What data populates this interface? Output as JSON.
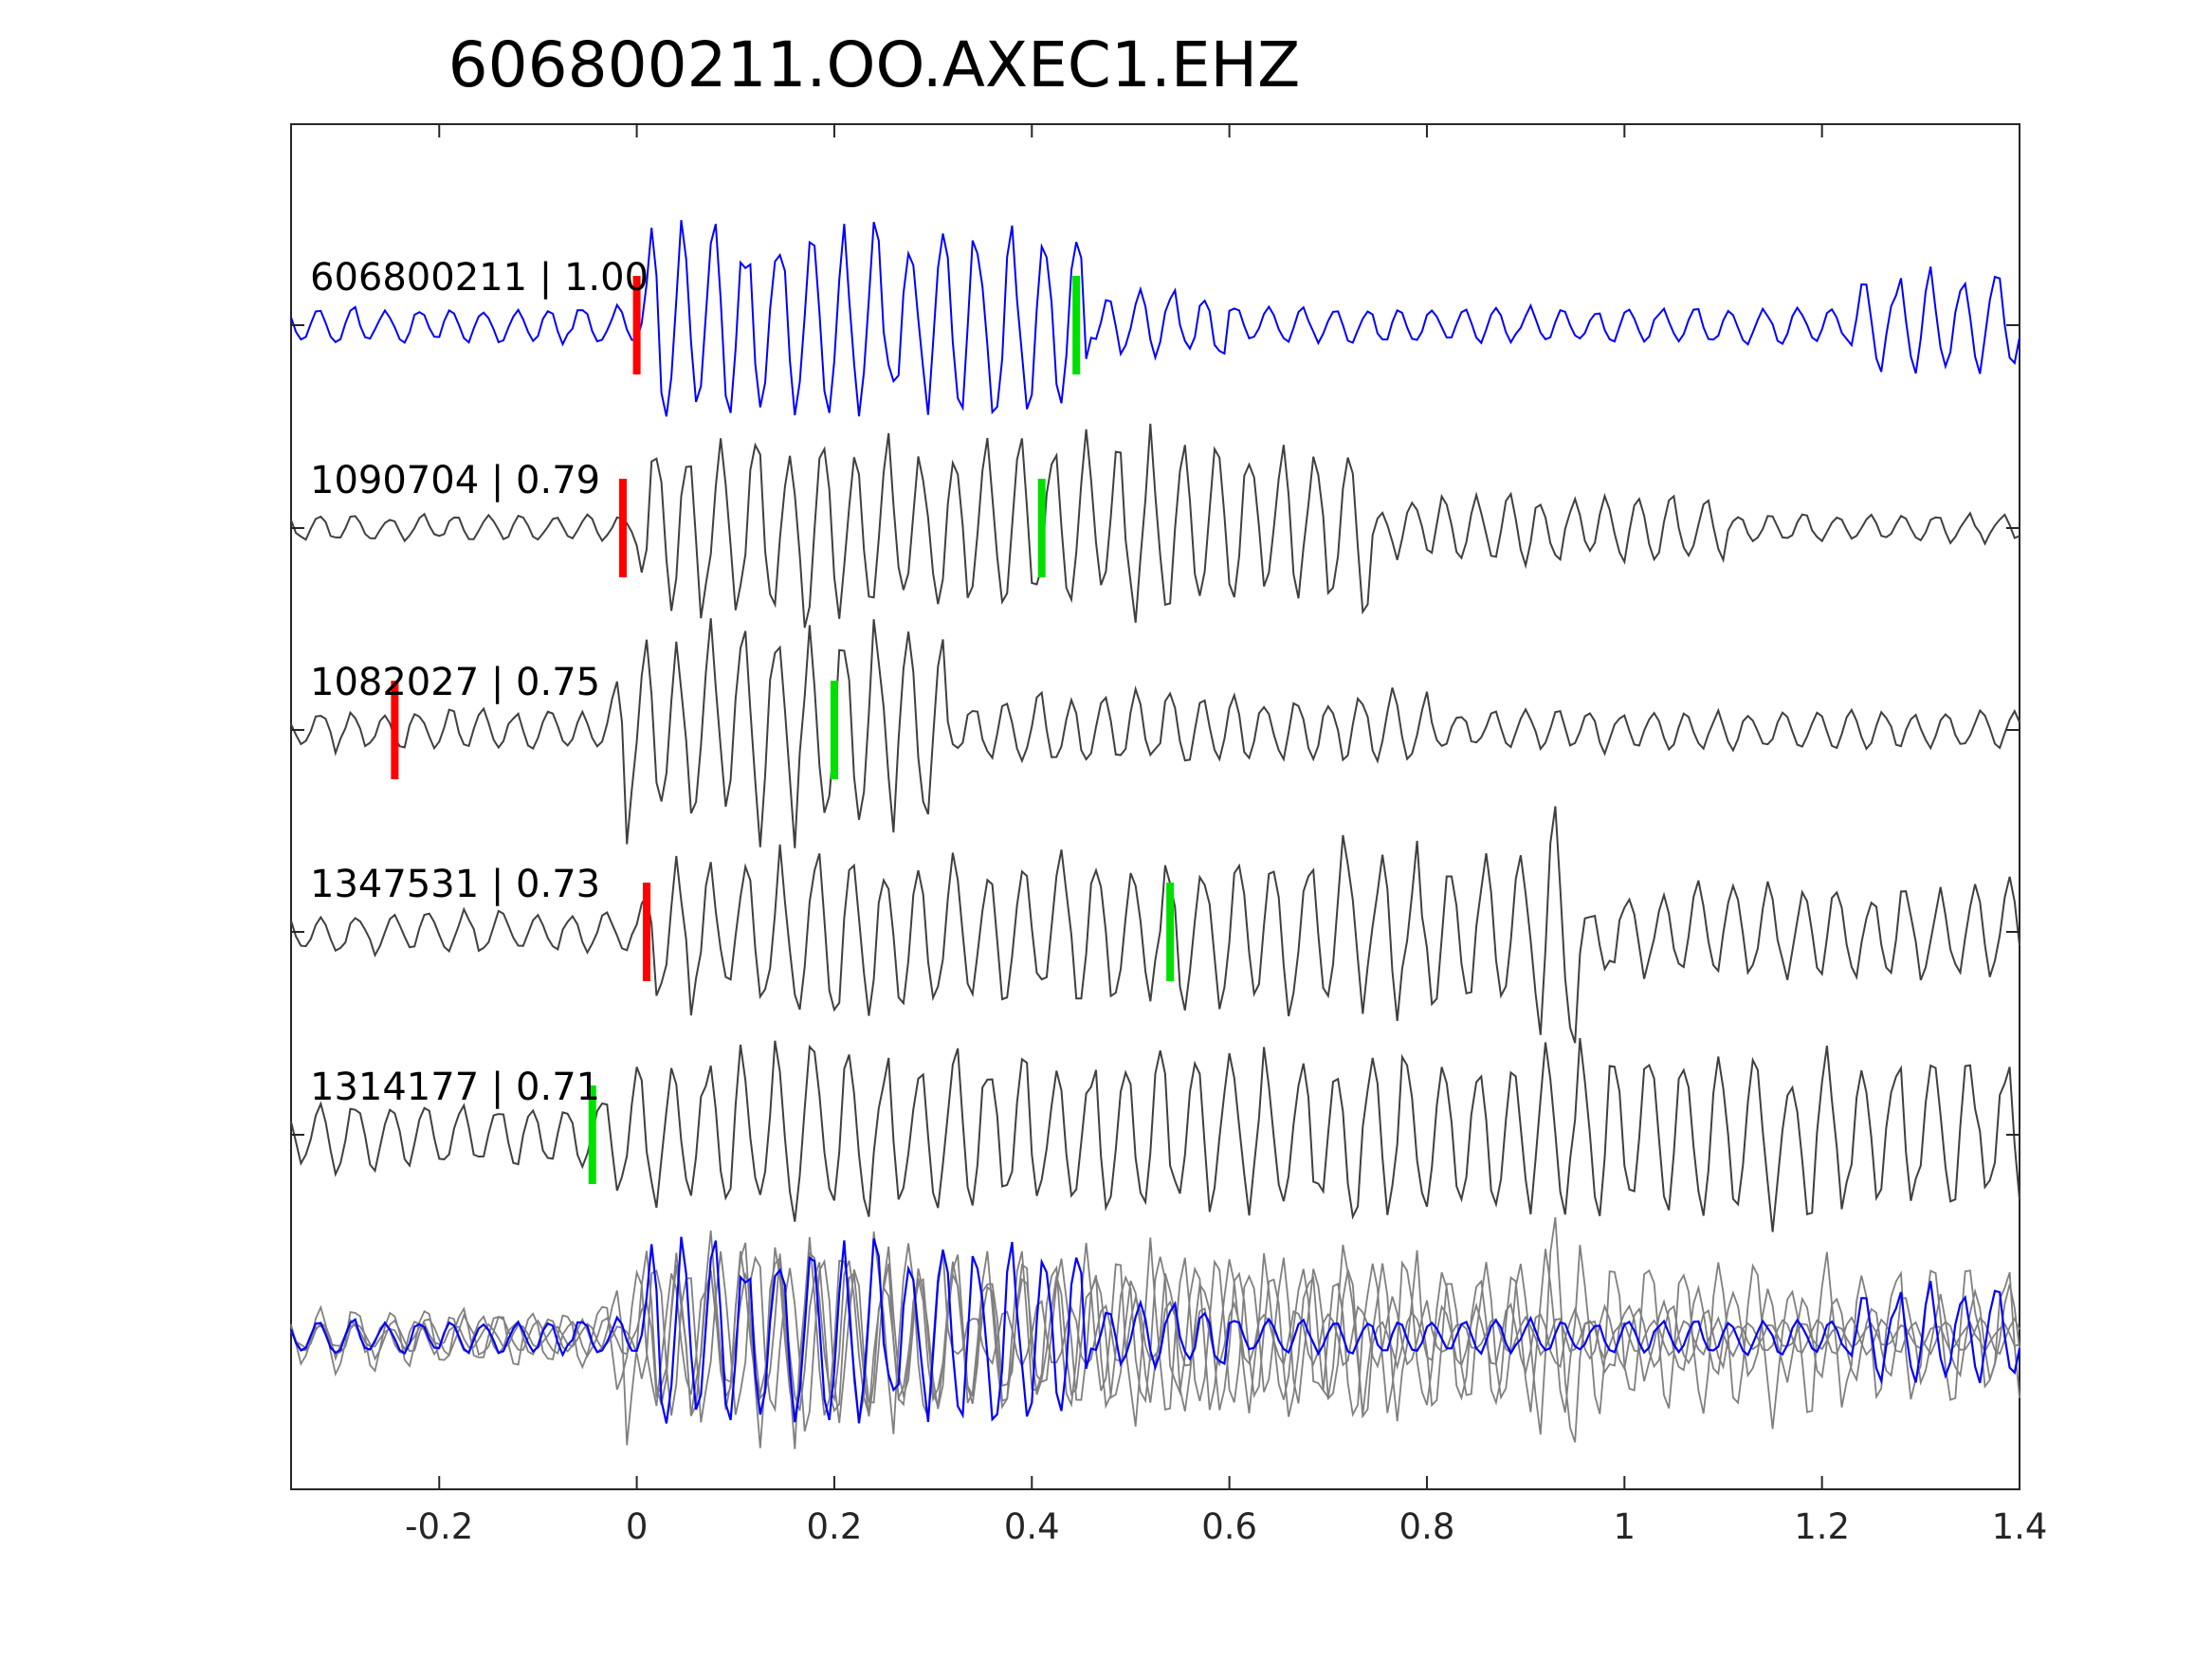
{
  "chart_data": {
    "type": "line",
    "title": "606800211.OO.AXEC1.EHZ",
    "xlabel": "",
    "ylabel": "",
    "xlim": [
      -0.35,
      1.4
    ],
    "x_ticks": [
      -0.2,
      0,
      0.2,
      0.4,
      0.6,
      0.8,
      1,
      1.2,
      1.4
    ],
    "x_tick_labels": [
      "-0.2",
      "0",
      "0.2",
      "0.4",
      "0.6",
      "0.8",
      "1",
      "1.2",
      "1.4"
    ],
    "grid": false,
    "colors": {
      "template": "#0000ff",
      "neighbor": "#404040",
      "stack_neighbor": "#808080",
      "pick_p": "#ff0000",
      "pick_s": "#00e000",
      "axes": "#262626"
    },
    "series": [
      {
        "name": "606800211 | 1.00",
        "id": "606800211",
        "correlation": 1.0,
        "color": "#0000ff",
        "p_pick": 0.0,
        "s_pick": 0.445,
        "onset": 0.0,
        "noise": 0.16,
        "amp": 1.0,
        "freq": 30,
        "seed": 11,
        "bursts": [
          {
            "t0": 0.0,
            "t1": 0.46,
            "amp": 1.0
          },
          {
            "t0": 0.46,
            "t1": 0.6,
            "amp": 0.35
          },
          {
            "t0": 1.22,
            "t1": 1.4,
            "amp": 0.55
          }
        ]
      },
      {
        "name": "1090704 | 0.79",
        "id": "1090704",
        "correlation": 0.79,
        "color": "#404040",
        "p_pick": -0.014,
        "s_pick": 0.41,
        "onset": -0.005,
        "noise": 0.12,
        "amp": 0.95,
        "freq": 30,
        "seed": 23,
        "bursts": [
          {
            "t0": -0.005,
            "t1": 0.75,
            "amp": 0.9
          },
          {
            "t0": 0.75,
            "t1": 1.1,
            "amp": 0.35
          }
        ]
      },
      {
        "name": "1082027 | 0.75",
        "id": "1082027",
        "correlation": 0.75,
        "color": "#404040",
        "p_pick": -0.245,
        "s_pick": 0.2,
        "onset": -0.03,
        "noise": 0.18,
        "amp": 0.95,
        "freq": 30,
        "seed": 37,
        "bursts": [
          {
            "t0": -0.03,
            "t1": 0.32,
            "amp": 1.0
          },
          {
            "t0": 0.32,
            "t1": 0.8,
            "amp": 0.35
          }
        ]
      },
      {
        "name": "1347531 | 0.73",
        "id": "1347531",
        "correlation": 0.73,
        "color": "#404040",
        "p_pick": 0.01,
        "s_pick": 0.54,
        "onset": 0.0,
        "noise": 0.18,
        "amp": 0.8,
        "freq": 28,
        "seed": 53,
        "bursts": [
          {
            "t0": 0.0,
            "t1": 0.9,
            "amp": 0.8
          },
          {
            "t0": 0.9,
            "t1": 0.96,
            "amp": 1.3
          },
          {
            "t0": 0.96,
            "t1": 1.4,
            "amp": 0.5
          }
        ]
      },
      {
        "name": "1314177 | 0.71",
        "id": "1314177",
        "correlation": 0.71,
        "color": "#404040",
        "p_pick": null,
        "s_pick": -0.045,
        "onset": -0.04,
        "noise": 0.3,
        "amp": 0.85,
        "freq": 28,
        "seed": 71,
        "bursts": [
          {
            "t0": -0.04,
            "t1": 1.4,
            "amp": 0.85
          }
        ]
      }
    ],
    "stack": {
      "description_visible": false,
      "overlay_of": [
        "606800211",
        "1090704",
        "1082027",
        "1347531",
        "1314177"
      ]
    }
  }
}
